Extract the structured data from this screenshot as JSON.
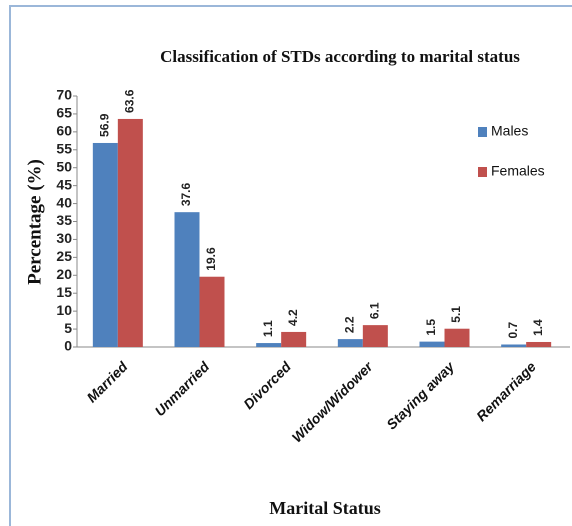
{
  "chart_data": {
    "type": "bar",
    "title": "Classification of STDs according to marital status",
    "x_label": "Marital Status",
    "y_label": "Percentage (%)",
    "categories": [
      "Married",
      "Unmarried",
      "Divorced",
      "Widow/Widower",
      "Staying away",
      "Remarriage"
    ],
    "series": [
      {
        "name": "Males",
        "color": "#4f81bd",
        "values": [
          56.9,
          37.6,
          1.1,
          2.2,
          1.5,
          0.7
        ]
      },
      {
        "name": "Females",
        "color": "#c0504d",
        "values": [
          63.6,
          19.6,
          4.2,
          6.1,
          5.1,
          1.4
        ]
      }
    ],
    "ylim": [
      0,
      70
    ],
    "yticks": [
      0,
      5,
      10,
      15,
      20,
      25,
      30,
      35,
      40,
      45,
      50,
      55,
      60,
      65,
      70
    ],
    "legend": "right",
    "grid": false
  }
}
